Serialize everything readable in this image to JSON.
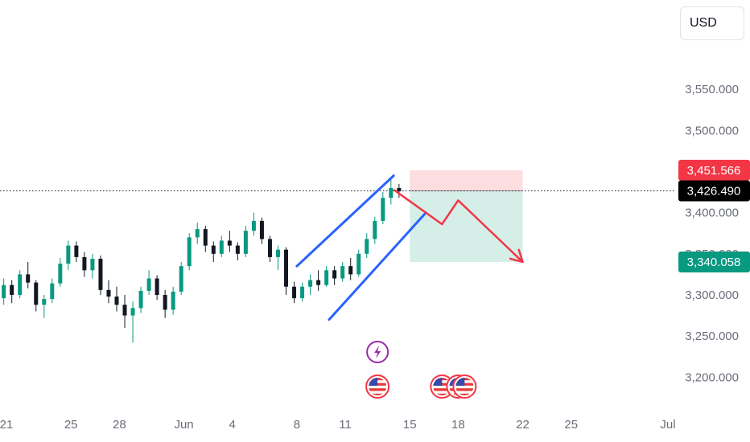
{
  "toolbar": {
    "currency_label": "USD"
  },
  "colors": {
    "up": "#089981",
    "down": "#131722",
    "channel": "#2962ff",
    "projection": "#f23645",
    "stop_zone": "#fcdde0",
    "target_zone": "#d6eee8",
    "stop_tag": "#f23645",
    "price_tag": "#000000",
    "target_tag": "#089981",
    "event_flash": "#9c27b0"
  },
  "chart_data": {
    "type": "candlestick",
    "title": "",
    "xlabel": "",
    "ylabel": "",
    "ylim": [
      3170,
      3600
    ],
    "y_ticks": [
      {
        "value": 3550,
        "label": "3,550.000"
      },
      {
        "value": 3500,
        "label": "3,500.000"
      },
      {
        "value": 3400,
        "label": "3,400.000"
      },
      {
        "value": 3350,
        "label": "3,350.000"
      },
      {
        "value": 3300,
        "label": "3,300.000"
      },
      {
        "value": 3250,
        "label": "3,250.000"
      },
      {
        "value": 3200,
        "label": "3,200.000"
      }
    ],
    "x_ticks": [
      {
        "value": "2025-05-21",
        "label": "21"
      },
      {
        "value": "2025-05-25",
        "label": "25"
      },
      {
        "value": "2025-05-28",
        "label": "28"
      },
      {
        "value": "2025-06-01",
        "label": "Jun"
      },
      {
        "value": "2025-06-04",
        "label": "4"
      },
      {
        "value": "2025-06-08",
        "label": "8"
      },
      {
        "value": "2025-06-11",
        "label": "11"
      },
      {
        "value": "2025-06-15",
        "label": "15"
      },
      {
        "value": "2025-06-18",
        "label": "18"
      },
      {
        "value": "2025-06-22",
        "label": "22"
      },
      {
        "value": "2025-06-25",
        "label": "25"
      },
      {
        "value": "2025-07-01",
        "label": "Jul"
      }
    ],
    "xlim": [
      "2025-05-21",
      "2025-07-01"
    ],
    "candles_4h_approx": [
      [
        3296,
        3320,
        3288,
        3312
      ],
      [
        3312,
        3318,
        3290,
        3300
      ],
      [
        3300,
        3330,
        3296,
        3325
      ],
      [
        3325,
        3340,
        3308,
        3315
      ],
      [
        3315,
        3318,
        3280,
        3288
      ],
      [
        3288,
        3300,
        3272,
        3295
      ],
      [
        3295,
        3320,
        3290,
        3314
      ],
      [
        3314,
        3345,
        3310,
        3338
      ],
      [
        3338,
        3366,
        3330,
        3360
      ],
      [
        3360,
        3365,
        3340,
        3346
      ],
      [
        3346,
        3352,
        3322,
        3330
      ],
      [
        3330,
        3350,
        3320,
        3344
      ],
      [
        3344,
        3348,
        3300,
        3306
      ],
      [
        3306,
        3318,
        3290,
        3298
      ],
      [
        3298,
        3310,
        3280,
        3288
      ],
      [
        3288,
        3300,
        3260,
        3275
      ],
      [
        3275,
        3292,
        3242,
        3284
      ],
      [
        3284,
        3310,
        3278,
        3305
      ],
      [
        3305,
        3330,
        3300,
        3320
      ],
      [
        3320,
        3324,
        3294,
        3300
      ],
      [
        3300,
        3306,
        3272,
        3282
      ],
      [
        3282,
        3310,
        3276,
        3304
      ],
      [
        3304,
        3340,
        3300,
        3335
      ],
      [
        3335,
        3375,
        3330,
        3370
      ],
      [
        3370,
        3388,
        3362,
        3380
      ],
      [
        3380,
        3384,
        3352,
        3360
      ],
      [
        3360,
        3365,
        3340,
        3350
      ],
      [
        3350,
        3372,
        3346,
        3366
      ],
      [
        3366,
        3378,
        3352,
        3360
      ],
      [
        3360,
        3364,
        3342,
        3350
      ],
      [
        3350,
        3384,
        3346,
        3378
      ],
      [
        3378,
        3400,
        3372,
        3390
      ],
      [
        3390,
        3394,
        3362,
        3368
      ],
      [
        3368,
        3372,
        3340,
        3346
      ],
      [
        3346,
        3360,
        3330,
        3355
      ],
      [
        3355,
        3358,
        3300,
        3310
      ],
      [
        3310,
        3316,
        3290,
        3296
      ],
      [
        3296,
        3315,
        3292,
        3310
      ],
      [
        3310,
        3325,
        3300,
        3318
      ],
      [
        3318,
        3330,
        3305,
        3312
      ],
      [
        3312,
        3335,
        3310,
        3330
      ],
      [
        3330,
        3335,
        3312,
        3320
      ],
      [
        3320,
        3340,
        3316,
        3335
      ],
      [
        3335,
        3345,
        3318,
        3325
      ],
      [
        3325,
        3355,
        3322,
        3350
      ],
      [
        3350,
        3375,
        3345,
        3368
      ],
      [
        3368,
        3395,
        3362,
        3390
      ],
      [
        3390,
        3425,
        3386,
        3418
      ],
      [
        3418,
        3440,
        3410,
        3430
      ],
      [
        3430,
        3435,
        3418,
        3426
      ]
    ],
    "channel": {
      "upper": [
        [
          "2025-06-08",
          3335
        ],
        [
          "2025-06-14",
          3445
        ]
      ],
      "lower": [
        [
          "2025-06-10",
          3270
        ],
        [
          "2025-06-16",
          3400
        ]
      ]
    },
    "position_box": {
      "start": "2025-06-15",
      "end": "2025-06-22",
      "stop": 3451.566,
      "entry": 3426.49,
      "target": 3340.058
    },
    "projection_path": [
      [
        "2025-06-14",
        3428
      ],
      [
        "2025-06-17",
        3386
      ],
      [
        "2025-06-18",
        3415
      ],
      [
        "2025-06-22",
        3340
      ]
    ],
    "price_tags": [
      {
        "value": 3451.566,
        "label": "3,451.566",
        "role": "stop"
      },
      {
        "value": 3426.49,
        "label": "3,426.490",
        "role": "last"
      },
      {
        "value": 3340.058,
        "label": "3,340.058",
        "role": "target"
      }
    ],
    "last_price_line": 3426.49,
    "events": [
      {
        "date": "2025-06-13",
        "icon": "lightning-icon",
        "row": 0
      },
      {
        "date": "2025-06-13",
        "icon": "us-flag-icon",
        "row": 1
      },
      {
        "date": "2025-06-17",
        "icon": "us-flag-icon",
        "row": 1
      },
      {
        "date": "2025-06-18",
        "icon": "us-flag-icon",
        "row": 1
      },
      {
        "date": "2025-06-18",
        "icon": "us-flag-icon",
        "row": 1
      }
    ]
  }
}
